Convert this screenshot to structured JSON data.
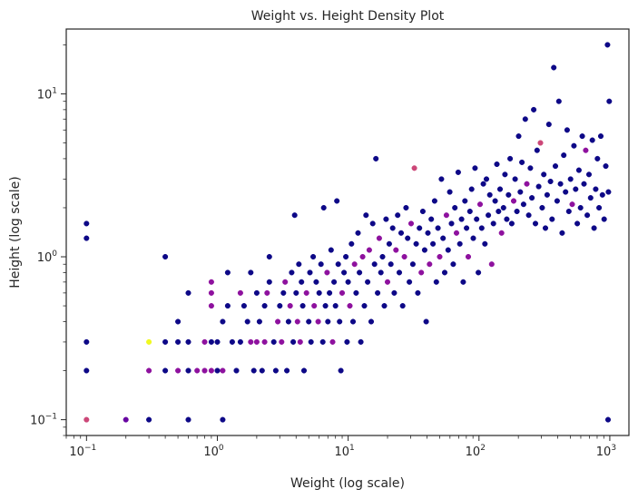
{
  "chart_data": {
    "type": "scatter",
    "title": "Weight vs. Height Density Plot",
    "xlabel": "Weight (log scale)",
    "ylabel": "Height (log scale)",
    "xscale": "log",
    "yscale": "log",
    "xlim": [
      0.07,
      1400
    ],
    "ylim": [
      0.08,
      25
    ],
    "grid": false,
    "colormap": [
      "#0d0887",
      "#7e03a8",
      "#cc4778",
      "#f89540",
      "#f0f921"
    ],
    "x_ticks": [
      {
        "base": "10",
        "exp": "−1",
        "value": 0.1
      },
      {
        "base": "10",
        "exp": "0",
        "value": 1
      },
      {
        "base": "10",
        "exp": "1",
        "value": 10
      },
      {
        "base": "10",
        "exp": "2",
        "value": 100
      },
      {
        "base": "10",
        "exp": "3",
        "value": 1000
      }
    ],
    "y_ticks": [
      {
        "base": "10",
        "exp": "−1",
        "value": 0.1
      },
      {
        "base": "10",
        "exp": "0",
        "value": 1
      },
      {
        "base": "10",
        "exp": "1",
        "value": 10
      }
    ],
    "points": [
      [
        0.1,
        0.1,
        0.5
      ],
      [
        0.1,
        0.2,
        0
      ],
      [
        0.1,
        0.3,
        0
      ],
      [
        0.1,
        1.3,
        0
      ],
      [
        0.1,
        1.6,
        0
      ],
      [
        0.2,
        0.1,
        0.2
      ],
      [
        0.3,
        0.1,
        0
      ],
      [
        0.3,
        0.2,
        0.3
      ],
      [
        0.3,
        0.3,
        1
      ],
      [
        0.4,
        0.2,
        0
      ],
      [
        0.4,
        0.3,
        0
      ],
      [
        0.4,
        1.0,
        0
      ],
      [
        0.5,
        0.2,
        0.3
      ],
      [
        0.5,
        0.3,
        0
      ],
      [
        0.5,
        0.4,
        0
      ],
      [
        0.6,
        0.1,
        0
      ],
      [
        0.6,
        0.2,
        0
      ],
      [
        0.6,
        0.3,
        0
      ],
      [
        0.6,
        0.6,
        0
      ],
      [
        0.7,
        0.2,
        0.3
      ],
      [
        0.8,
        0.2,
        0.3
      ],
      [
        0.8,
        0.3,
        0.3
      ],
      [
        0.9,
        0.2,
        0.3
      ],
      [
        0.9,
        0.3,
        0
      ],
      [
        0.9,
        0.5,
        0.3
      ],
      [
        0.9,
        0.6,
        0.3
      ],
      [
        0.9,
        0.7,
        0.3
      ],
      [
        1.0,
        0.2,
        0
      ],
      [
        1.0,
        0.3,
        0
      ],
      [
        1.1,
        0.1,
        0
      ],
      [
        1.1,
        0.2,
        0.3
      ],
      [
        1.1,
        0.4,
        0
      ],
      [
        1.2,
        0.5,
        0
      ],
      [
        1.2,
        0.8,
        0
      ],
      [
        1.3,
        0.3,
        0
      ],
      [
        1.4,
        0.2,
        0
      ],
      [
        1.5,
        0.3,
        0
      ],
      [
        1.5,
        0.6,
        0.3
      ],
      [
        1.6,
        0.5,
        0
      ],
      [
        1.7,
        0.4,
        0
      ],
      [
        1.8,
        0.3,
        0.3
      ],
      [
        1.8,
        0.8,
        0
      ],
      [
        1.9,
        0.2,
        0
      ],
      [
        2.0,
        0.3,
        0.3
      ],
      [
        2.0,
        0.6,
        0
      ],
      [
        2.1,
        0.4,
        0
      ],
      [
        2.2,
        0.2,
        0
      ],
      [
        2.3,
        0.5,
        0
      ],
      [
        2.3,
        0.3,
        0.3
      ],
      [
        2.4,
        0.6,
        0.3
      ],
      [
        2.5,
        0.7,
        0
      ],
      [
        2.5,
        1.0,
        0
      ],
      [
        2.7,
        0.3,
        0
      ],
      [
        2.8,
        0.2,
        0
      ],
      [
        2.9,
        0.4,
        0.3
      ],
      [
        3.0,
        0.5,
        0
      ],
      [
        3.1,
        0.3,
        0.3
      ],
      [
        3.2,
        0.6,
        0
      ],
      [
        3.3,
        0.7,
        0.3
      ],
      [
        3.4,
        0.2,
        0
      ],
      [
        3.5,
        0.4,
        0
      ],
      [
        3.6,
        0.5,
        0.3
      ],
      [
        3.7,
        0.8,
        0
      ],
      [
        3.8,
        0.3,
        0
      ],
      [
        3.9,
        1.8,
        0
      ],
      [
        4.0,
        0.6,
        0
      ],
      [
        4.1,
        0.4,
        0.3
      ],
      [
        4.2,
        0.9,
        0
      ],
      [
        4.3,
        0.3,
        0.3
      ],
      [
        4.4,
        0.7,
        0
      ],
      [
        4.5,
        0.5,
        0
      ],
      [
        4.6,
        0.2,
        0
      ],
      [
        4.8,
        0.6,
        0.3
      ],
      [
        5.0,
        0.4,
        0
      ],
      [
        5.1,
        0.8,
        0
      ],
      [
        5.2,
        0.3,
        0
      ],
      [
        5.4,
        1.0,
        0
      ],
      [
        5.5,
        0.5,
        0.3
      ],
      [
        5.7,
        0.7,
        0
      ],
      [
        5.9,
        0.4,
        0.3
      ],
      [
        6.0,
        0.6,
        0
      ],
      [
        6.2,
        0.9,
        0
      ],
      [
        6.4,
        0.3,
        0
      ],
      [
        6.5,
        2.0,
        0
      ],
      [
        6.7,
        0.5,
        0
      ],
      [
        6.9,
        0.8,
        0.3
      ],
      [
        7.0,
        0.4,
        0
      ],
      [
        7.2,
        0.6,
        0
      ],
      [
        7.4,
        1.1,
        0
      ],
      [
        7.6,
        0.3,
        0.3
      ],
      [
        7.8,
        0.7,
        0
      ],
      [
        8.0,
        0.5,
        0
      ],
      [
        8.2,
        2.2,
        0
      ],
      [
        8.4,
        0.9,
        0
      ],
      [
        8.6,
        0.4,
        0
      ],
      [
        8.8,
        0.2,
        0
      ],
      [
        9.0,
        0.6,
        0.3
      ],
      [
        9.3,
        0.8,
        0
      ],
      [
        9.6,
        1.0,
        0
      ],
      [
        9.8,
        0.3,
        0
      ],
      [
        10,
        0.7,
        0
      ],
      [
        10.3,
        0.5,
        0.3
      ],
      [
        10.6,
        1.2,
        0
      ],
      [
        10.9,
        0.4,
        0
      ],
      [
        11.2,
        0.9,
        0.3
      ],
      [
        11.5,
        0.6,
        0
      ],
      [
        11.9,
        1.4,
        0
      ],
      [
        12.2,
        0.8,
        0
      ],
      [
        12.5,
        0.3,
        0
      ],
      [
        12.9,
        1.0,
        0.3
      ],
      [
        13.3,
        0.5,
        0
      ],
      [
        13.7,
        1.8,
        0
      ],
      [
        14.1,
        0.7,
        0
      ],
      [
        14.5,
        1.1,
        0.3
      ],
      [
        15,
        0.4,
        0
      ],
      [
        15.4,
        1.6,
        0
      ],
      [
        15.9,
        0.9,
        0
      ],
      [
        16.3,
        4.0,
        0
      ],
      [
        16.8,
        0.6,
        0
      ],
      [
        17.3,
        1.3,
        0.3
      ],
      [
        17.8,
        0.8,
        0
      ],
      [
        18.3,
        1.0,
        0
      ],
      [
        18.9,
        0.5,
        0
      ],
      [
        19.5,
        1.7,
        0
      ],
      [
        20,
        0.7,
        0.3
      ],
      [
        20.6,
        1.2,
        0
      ],
      [
        21.2,
        0.9,
        0
      ],
      [
        21.9,
        1.5,
        0
      ],
      [
        22.5,
        0.6,
        0
      ],
      [
        23.2,
        1.1,
        0.3
      ],
      [
        23.9,
        1.8,
        0
      ],
      [
        24.6,
        0.8,
        0
      ],
      [
        25.4,
        1.4,
        0
      ],
      [
        26.1,
        0.5,
        0
      ],
      [
        26.9,
        1.0,
        0.3
      ],
      [
        27.7,
        2.0,
        0
      ],
      [
        28.5,
        1.3,
        0
      ],
      [
        29.4,
        0.7,
        0
      ],
      [
        30.3,
        1.6,
        0.3
      ],
      [
        31.2,
        0.9,
        0
      ],
      [
        32.1,
        3.5,
        0.5
      ],
      [
        33.1,
        1.2,
        0
      ],
      [
        34.1,
        0.6,
        0
      ],
      [
        35.1,
        1.5,
        0
      ],
      [
        36.2,
        0.8,
        0.3
      ],
      [
        37.2,
        1.9,
        0
      ],
      [
        38.4,
        1.1,
        0
      ],
      [
        39.5,
        0.4,
        0
      ],
      [
        40.7,
        1.4,
        0
      ],
      [
        41.9,
        0.9,
        0.3
      ],
      [
        43.2,
        1.7,
        0
      ],
      [
        44.5,
        1.2,
        0
      ],
      [
        45.8,
        2.2,
        0
      ],
      [
        47.2,
        0.7,
        0
      ],
      [
        48.6,
        1.5,
        0
      ],
      [
        50.1,
        1.0,
        0.3
      ],
      [
        51.6,
        3.0,
        0
      ],
      [
        53.1,
        1.3,
        0
      ],
      [
        54.7,
        0.8,
        0
      ],
      [
        56.4,
        1.8,
        0.3
      ],
      [
        58.1,
        1.1,
        0
      ],
      [
        59.8,
        2.5,
        0
      ],
      [
        61.6,
        1.6,
        0
      ],
      [
        63.5,
        0.9,
        0
      ],
      [
        65.4,
        2.0,
        0
      ],
      [
        67.3,
        1.4,
        0.3
      ],
      [
        69.4,
        3.3,
        0
      ],
      [
        71.4,
        1.2,
        0
      ],
      [
        73.6,
        1.7,
        0
      ],
      [
        75.8,
        0.7,
        0
      ],
      [
        78.1,
        2.2,
        0
      ],
      [
        80.4,
        1.5,
        0
      ],
      [
        82.8,
        1.0,
        0.3
      ],
      [
        85.3,
        1.9,
        0
      ],
      [
        87.9,
        2.6,
        0
      ],
      [
        90.5,
        1.3,
        0
      ],
      [
        93.2,
        3.5,
        0
      ],
      [
        96,
        1.7,
        0
      ],
      [
        98.9,
        0.8,
        0
      ],
      [
        102,
        2.1,
        0.3
      ],
      [
        105,
        1.5,
        0
      ],
      [
        108,
        2.8,
        0
      ],
      [
        111,
        1.2,
        0
      ],
      [
        114,
        3.0,
        0
      ],
      [
        118,
        1.8,
        0
      ],
      [
        121,
        2.4,
        0
      ],
      [
        125,
        0.9,
        0.3
      ],
      [
        129,
        1.6,
        0
      ],
      [
        133,
        2.2,
        0
      ],
      [
        137,
        3.7,
        0
      ],
      [
        141,
        1.9,
        0
      ],
      [
        145,
        2.6,
        0
      ],
      [
        149,
        1.4,
        0.3
      ],
      [
        154,
        2.0,
        0
      ],
      [
        158,
        3.2,
        0
      ],
      [
        163,
        1.7,
        0
      ],
      [
        168,
        2.4,
        0
      ],
      [
        173,
        4.0,
        0
      ],
      [
        178,
        1.6,
        0
      ],
      [
        184,
        2.2,
        0.3
      ],
      [
        189,
        3.0,
        0
      ],
      [
        195,
        1.9,
        0
      ],
      [
        201,
        5.5,
        0
      ],
      [
        207,
        2.5,
        0
      ],
      [
        213,
        3.8,
        0
      ],
      [
        219,
        2.1,
        0
      ],
      [
        226,
        7.0,
        0
      ],
      [
        232,
        2.8,
        0.3
      ],
      [
        240,
        1.8,
        0
      ],
      [
        247,
        3.5,
        0
      ],
      [
        254,
        2.3,
        0
      ],
      [
        262,
        8.0,
        0
      ],
      [
        270,
        1.6,
        0
      ],
      [
        278,
        4.5,
        0
      ],
      [
        286,
        2.7,
        0
      ],
      [
        295,
        5.0,
        0.5
      ],
      [
        304,
        2.0,
        0
      ],
      [
        313,
        3.2,
        0
      ],
      [
        322,
        1.5,
        0
      ],
      [
        332,
        2.4,
        0
      ],
      [
        342,
        6.5,
        0
      ],
      [
        352,
        2.9,
        0
      ],
      [
        362,
        1.7,
        0
      ],
      [
        373,
        14.5,
        0
      ],
      [
        384,
        3.6,
        0
      ],
      [
        396,
        2.2,
        0
      ],
      [
        408,
        9.0,
        0
      ],
      [
        420,
        2.8,
        0
      ],
      [
        432,
        1.4,
        0
      ],
      [
        445,
        4.2,
        0
      ],
      [
        459,
        2.5,
        0
      ],
      [
        472,
        6.0,
        0
      ],
      [
        486,
        1.9,
        0
      ],
      [
        501,
        3.0,
        0
      ],
      [
        516,
        2.1,
        0.3
      ],
      [
        532,
        4.8,
        0
      ],
      [
        548,
        2.6,
        0
      ],
      [
        564,
        1.6,
        0
      ],
      [
        581,
        3.4,
        0
      ],
      [
        598,
        2.0,
        0
      ],
      [
        616,
        5.5,
        0
      ],
      [
        635,
        2.8,
        0
      ],
      [
        654,
        4.5,
        0.3
      ],
      [
        673,
        1.8,
        0
      ],
      [
        693,
        3.2,
        0
      ],
      [
        714,
        2.3,
        0
      ],
      [
        736,
        5.2,
        0
      ],
      [
        758,
        1.5,
        0
      ],
      [
        780,
        2.6,
        0
      ],
      [
        804,
        4.0,
        0
      ],
      [
        828,
        2.0,
        0
      ],
      [
        853,
        5.5,
        0
      ],
      [
        878,
        2.4,
        0
      ],
      [
        905,
        1.7,
        0
      ],
      [
        932,
        3.6,
        0
      ],
      [
        960,
        20.0,
        0
      ],
      [
        970,
        0.1,
        0
      ],
      [
        975,
        2.5,
        0
      ],
      [
        990,
        9.0,
        0
      ]
    ]
  }
}
